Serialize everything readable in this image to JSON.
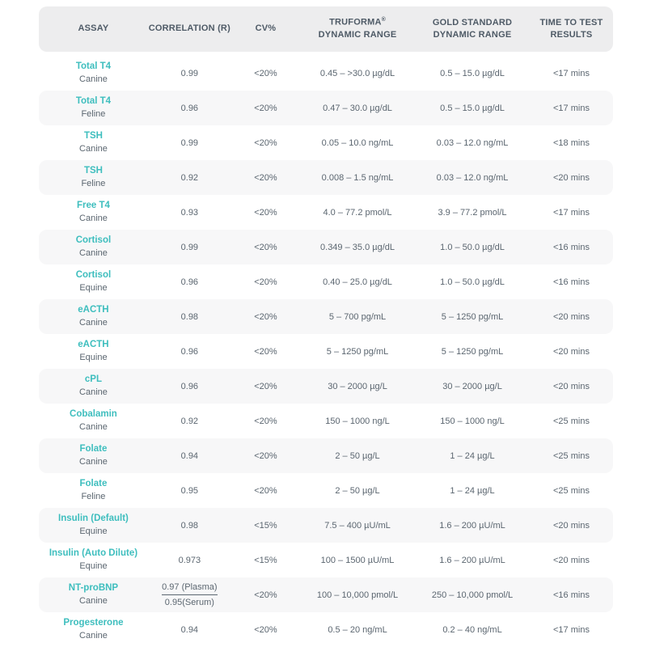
{
  "colors": {
    "accent_teal": "#3EBEBE",
    "header_text": "#4E5A66",
    "body_text": "#5B6670",
    "header_bg": "#EDEDEE",
    "row_alt_bg": "#F7F7F8"
  },
  "header": {
    "assay": {
      "label": "ASSAY"
    },
    "correlation": {
      "label": "CORRELATION (R)"
    },
    "cv": {
      "label": "CV%"
    },
    "truforma": {
      "line1": "TRUFORMA",
      "reg": "®",
      "line2": "DYNAMIC RANGE"
    },
    "gold": {
      "line1": "GOLD STANDARD",
      "line2": "DYNAMIC RANGE"
    },
    "time": {
      "line1": "TIME TO TEST",
      "line2": "RESULTS"
    }
  },
  "table": {
    "rows": [
      {
        "assay": "Total T4",
        "species": "Canine",
        "correlation": "0.99",
        "cv": "<20%",
        "truforma": "0.45 – >30.0 µg/dL",
        "gold": "0.5 – 15.0 µg/dL",
        "time": "<17 mins"
      },
      {
        "assay": "Total T4",
        "species": "Feline",
        "correlation": "0.96",
        "cv": "<20%",
        "truforma": "0.47 – 30.0 µg/dL",
        "gold": "0.5 – 15.0 µg/dL",
        "time": "<17 mins"
      },
      {
        "assay": "TSH",
        "species": "Canine",
        "correlation": "0.99",
        "cv": "<20%",
        "truforma": "0.05 – 10.0 ng/mL",
        "gold": "0.03 – 12.0 ng/mL",
        "time": "<18 mins"
      },
      {
        "assay": "TSH",
        "species": "Feline",
        "correlation": "0.92",
        "cv": "<20%",
        "truforma": "0.008 – 1.5 ng/mL",
        "gold": "0.03 – 12.0 ng/mL",
        "time": "<20 mins"
      },
      {
        "assay": "Free T4",
        "species": "Canine",
        "correlation": "0.93",
        "cv": "<20%",
        "truforma": "4.0 – 77.2 pmol/L",
        "gold": "3.9 – 77.2 pmol/L",
        "time": "<17 mins"
      },
      {
        "assay": "Cortisol",
        "species": "Canine",
        "correlation": "0.99",
        "cv": "<20%",
        "truforma": "0.349 – 35.0 µg/dL",
        "gold": "1.0 – 50.0 µg/dL",
        "time": "<16 mins"
      },
      {
        "assay": "Cortisol",
        "species": "Equine",
        "correlation": "0.96",
        "cv": "<20%",
        "truforma": "0.40 – 25.0 µg/dL",
        "gold": "1.0 – 50.0 µg/dL",
        "time": "<16 mins"
      },
      {
        "assay": "eACTH",
        "species": "Canine",
        "correlation": "0.98",
        "cv": "<20%",
        "truforma": "5 – 700 pg/mL",
        "gold": "5 – 1250 pg/mL",
        "time": "<20 mins"
      },
      {
        "assay": "eACTH",
        "species": "Equine",
        "correlation": "0.96",
        "cv": "<20%",
        "truforma": "5 – 1250 pg/mL",
        "gold": "5 – 1250 pg/mL",
        "time": "<20 mins"
      },
      {
        "assay": "cPL",
        "species": "Canine",
        "correlation": "0.96",
        "cv": "<20%",
        "truforma": "30 – 2000 µg/L",
        "gold": "30 – 2000 µg/L",
        "time": "<20 mins"
      },
      {
        "assay": "Cobalamin",
        "species": "Canine",
        "correlation": "0.92",
        "cv": "<20%",
        "truforma": "150 – 1000 ng/L",
        "gold": "150 – 1000 ng/L",
        "time": "<25 mins"
      },
      {
        "assay": "Folate",
        "species": "Canine",
        "correlation": "0.94",
        "cv": "<20%",
        "truforma": "2 – 50 µg/L",
        "gold": "1 – 24 µg/L",
        "time": "<25 mins"
      },
      {
        "assay": "Folate",
        "species": "Feline",
        "correlation": "0.95",
        "cv": "<20%",
        "truforma": "2 – 50 µg/L",
        "gold": "1 – 24 µg/L",
        "time": "<25 mins"
      },
      {
        "assay": "Insulin (Default)",
        "species": "Equine",
        "correlation": "0.98",
        "cv": "<15%",
        "truforma": "7.5 – 400 µU/mL",
        "gold": "1.6 – 200 µU/mL",
        "time": "<20 mins"
      },
      {
        "assay": "Insulin (Auto Dilute)",
        "species": "Equine",
        "correlation": "0.973",
        "cv": "<15%",
        "truforma": "100 – 1500 µU/mL",
        "gold": "1.6 – 200 µU/mL",
        "time": "<20 mins"
      },
      {
        "assay": "NT-proBNP",
        "species": "Canine",
        "correlation_plasma": "0.97 (Plasma)",
        "correlation_serum": "0.95(Serum)",
        "cv": "<20%",
        "truforma": "100 – 10,000 pmol/L",
        "gold": "250 – 10,000 pmol/L",
        "time": "<16 mins"
      },
      {
        "assay": "Progesterone",
        "species": "Canine",
        "correlation": "0.94",
        "cv": "<20%",
        "truforma": "0.5 – 20 ng/mL",
        "gold": "0.2 – 40 ng/mL",
        "time": "<17 mins"
      }
    ]
  }
}
